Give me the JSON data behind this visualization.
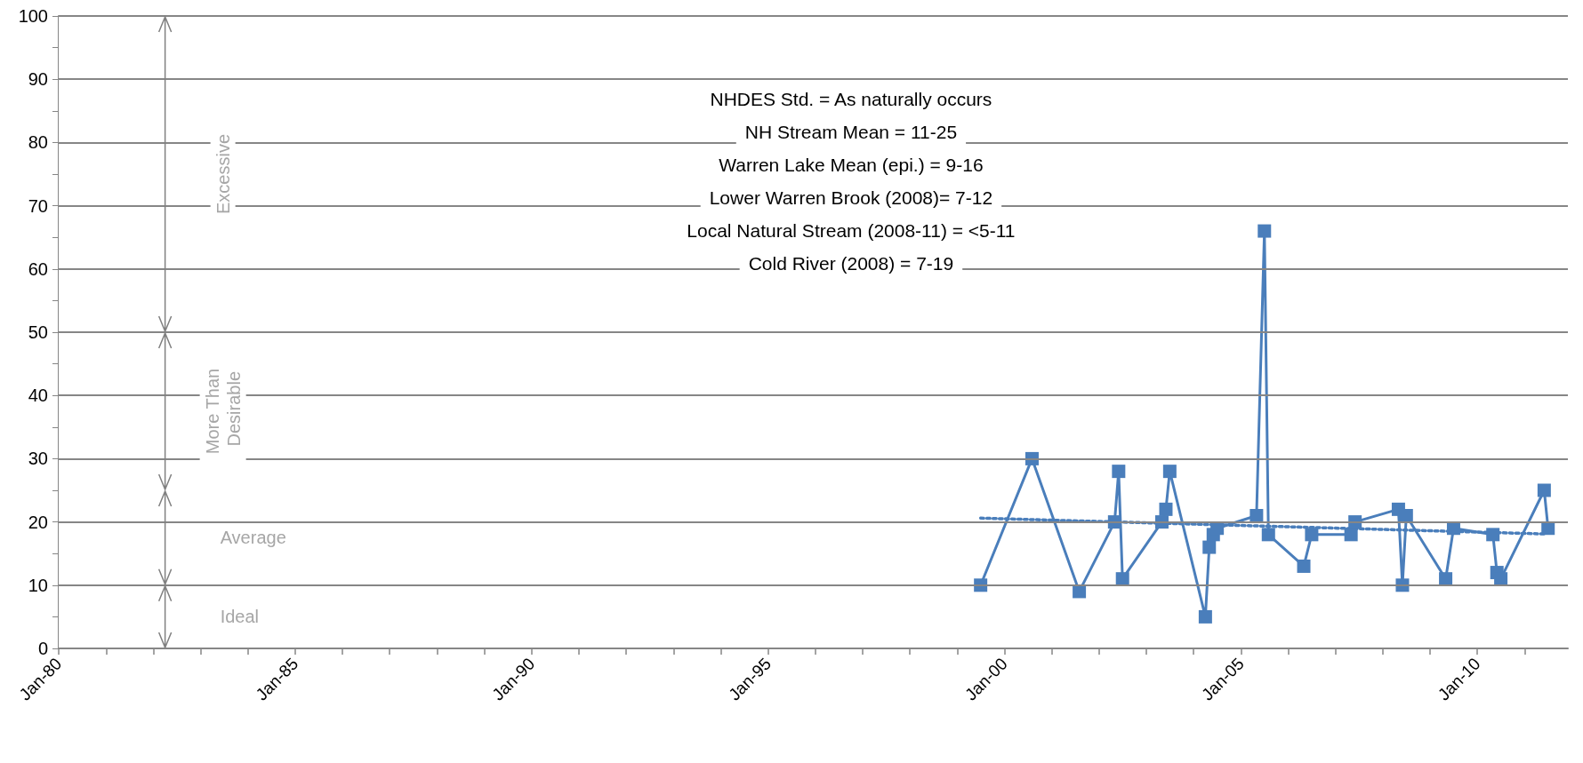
{
  "chart_data": {
    "type": "line",
    "marker": "square",
    "line_style": "solid",
    "grid": "y",
    "xlim": [
      "1980-01",
      "2011-12"
    ],
    "xticks": [
      {
        "value": "1980-01",
        "label": "Jan-80"
      },
      {
        "value": "1981-01",
        "label": null
      },
      {
        "value": "1982-01",
        "label": null
      },
      {
        "value": "1983-01",
        "label": null
      },
      {
        "value": "1984-01",
        "label": null
      },
      {
        "value": "1985-01",
        "label": "Jan-85"
      },
      {
        "value": "1986-01",
        "label": null
      },
      {
        "value": "1987-01",
        "label": null
      },
      {
        "value": "1988-01",
        "label": null
      },
      {
        "value": "1989-01",
        "label": null
      },
      {
        "value": "1990-01",
        "label": "Jan-90"
      },
      {
        "value": "1991-01",
        "label": null
      },
      {
        "value": "1992-01",
        "label": null
      },
      {
        "value": "1993-01",
        "label": null
      },
      {
        "value": "1994-01",
        "label": null
      },
      {
        "value": "1995-01",
        "label": "Jan-95"
      },
      {
        "value": "1996-01",
        "label": null
      },
      {
        "value": "1997-01",
        "label": null
      },
      {
        "value": "1998-01",
        "label": null
      },
      {
        "value": "1999-01",
        "label": null
      },
      {
        "value": "2000-01",
        "label": "Jan-00"
      },
      {
        "value": "2001-01",
        "label": null
      },
      {
        "value": "2002-01",
        "label": null
      },
      {
        "value": "2003-01",
        "label": null
      },
      {
        "value": "2004-01",
        "label": null
      },
      {
        "value": "2005-01",
        "label": "Jan-05"
      },
      {
        "value": "2006-01",
        "label": null
      },
      {
        "value": "2007-01",
        "label": null
      },
      {
        "value": "2008-01",
        "label": null
      },
      {
        "value": "2009-01",
        "label": null
      },
      {
        "value": "2010-01",
        "label": "Jan-10"
      },
      {
        "value": "2011-01",
        "label": null
      }
    ],
    "ylim": [
      0,
      100
    ],
    "yticks": [
      0,
      {
        "value": 5,
        "label": null
      },
      10,
      {
        "value": 15,
        "label": null
      },
      20,
      {
        "value": 25,
        "label": null
      },
      30,
      {
        "value": 35,
        "label": null
      },
      40,
      {
        "value": 45,
        "label": null
      },
      50,
      {
        "value": 55,
        "label": null
      },
      60,
      {
        "value": 65,
        "label": null
      },
      70,
      {
        "value": 75,
        "label": null
      },
      80,
      {
        "value": 85,
        "label": null
      },
      90,
      {
        "value": 95,
        "label": null
      },
      100
    ],
    "series": [
      {
        "color": "#4a7ebb",
        "x": [
          "1999-07",
          "2000-08",
          "2001-08",
          "2002-05",
          "2002-06",
          "2002-07",
          "2003-05",
          "2003-06",
          "2003-07",
          "2004-04",
          "2004-05",
          "2004-06",
          "2004-07",
          "2005-05",
          "2005-07",
          "2005-08",
          "2006-05",
          "2006-07",
          "2007-05",
          "2007-06",
          "2008-05",
          "2008-06",
          "2008-07",
          "2009-05",
          "2009-07",
          "2010-05",
          "2010-06",
          "2010-07",
          "2011-06",
          "2011-07"
        ],
        "values": [
          10,
          30,
          9,
          20,
          28,
          11,
          20,
          22,
          28,
          5,
          16,
          18,
          19,
          21,
          66,
          18,
          13,
          18,
          18,
          20,
          22,
          10,
          21,
          11,
          19,
          18,
          12,
          11,
          25,
          19
        ]
      },
      {
        "type": "line",
        "color": "#4a7ebb",
        "marker": "none",
        "line_style": "dotted",
        "x": [
          "1999-07",
          "2011-06"
        ],
        "values": [
          20.6,
          18.1
        ]
      }
    ],
    "bands": [
      {
        "axis": "y",
        "from": 50,
        "to": 100,
        "label": "Excessive"
      },
      {
        "axis": "y",
        "from": 25,
        "to": 50,
        "label": "More Than Desirable"
      },
      {
        "axis": "y",
        "from": 10,
        "to": 25,
        "label": "Average"
      },
      {
        "axis": "y",
        "from": 0,
        "to": 10,
        "label": "Ideal"
      }
    ],
    "annotations": [
      "NHDES Std. = As naturally occurs",
      "NH Stream Mean = 11-25",
      "Warren Lake Mean (epi.) = 9-16",
      "Lower Warren Brook (2008)= 7-12",
      "Local Natural Stream (2008-11) = <5-11",
      "Cold River (2008) = 7-19"
    ]
  }
}
